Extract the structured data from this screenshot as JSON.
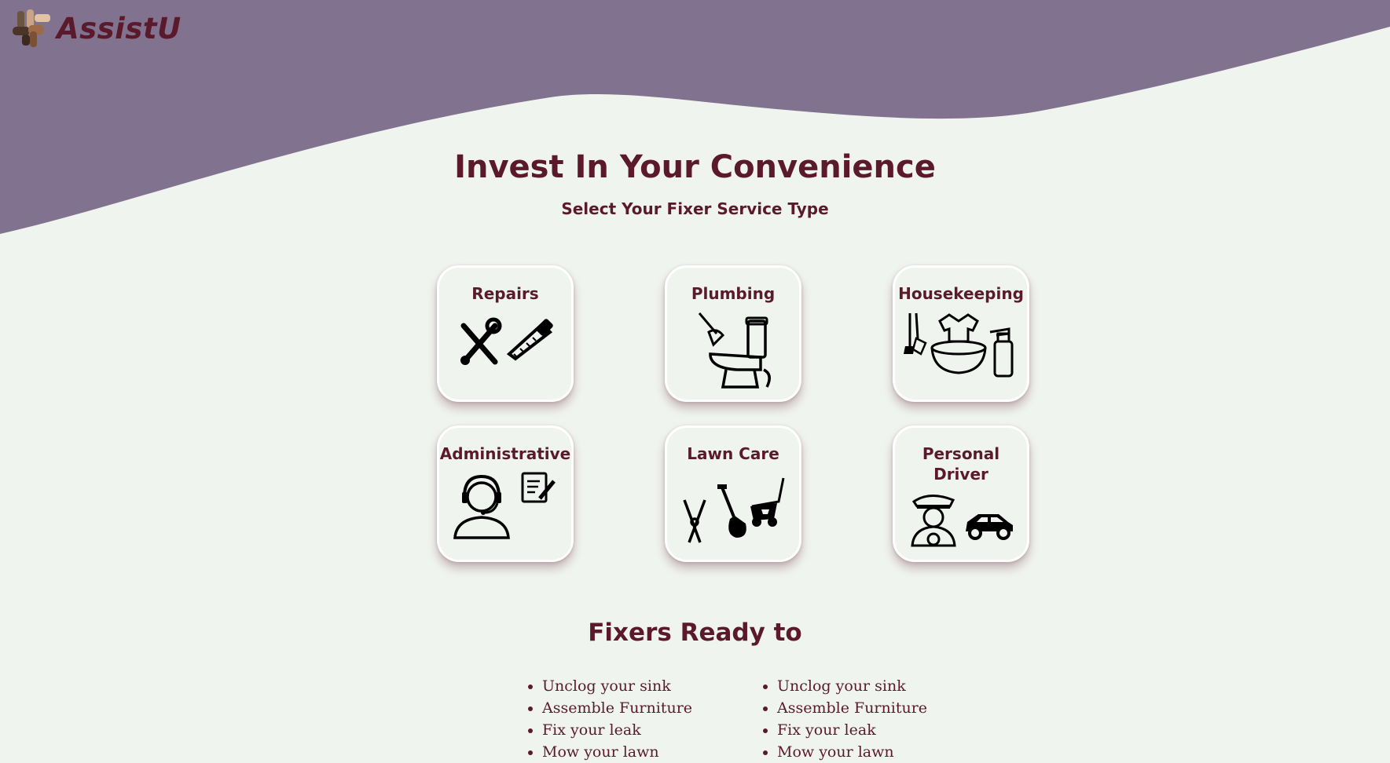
{
  "brand": {
    "name": "AssistU",
    "logo_icon": "stacked-hands-icon"
  },
  "colors": {
    "header_wave": "#81728f",
    "background": "#f0f4ef",
    "accent_text": "#5a1a2c"
  },
  "hero": {
    "title": "Invest In Your Convenience",
    "subtitle": "Select Your Fixer Service Type"
  },
  "services": [
    {
      "label": "Repairs",
      "icon": "tools-icon"
    },
    {
      "label": "Plumbing",
      "icon": "toilet-plunger-icon"
    },
    {
      "label": "Housekeeping",
      "icon": "laundry-cleaning-icon"
    },
    {
      "label": "Administrative",
      "icon": "headset-assistant-icon"
    },
    {
      "label": "Lawn Care",
      "icon": "garden-tools-icon"
    },
    {
      "label": "Personal\nDriver",
      "icon": "chauffeur-car-icon"
    }
  ],
  "fixers": {
    "title": "Fixers Ready to",
    "columns": [
      [
        "Unclog your sink",
        "Assemble Furniture",
        "Fix your leak",
        "Mow your lawn"
      ],
      [
        "Unclog your sink",
        "Assemble Furniture",
        "Fix your leak",
        "Mow your lawn"
      ]
    ]
  }
}
